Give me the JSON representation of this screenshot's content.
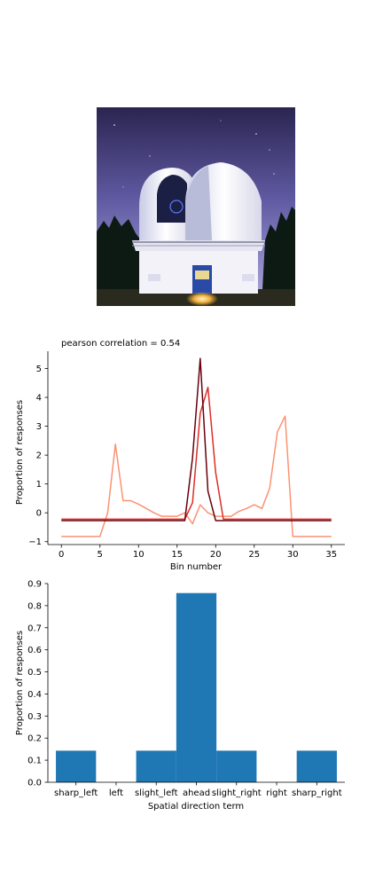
{
  "colors": {
    "bar": "#1f77b4",
    "axis": "#000000"
  },
  "chart_data": [
    {
      "type": "line",
      "title": "pearson correlation = 0.54",
      "xlabel": "Bin number",
      "ylabel": "Proportion of responses",
      "xlim": [
        -1.75,
        36.75
      ],
      "ylim": [
        -1.1,
        5.6
      ],
      "xticks": [
        0,
        5,
        10,
        15,
        20,
        25,
        30,
        35
      ],
      "yticks": [
        -1,
        0,
        1,
        2,
        3,
        4,
        5
      ],
      "grid": false,
      "series": [
        {
          "color": "#fc9272",
          "x": [
            0,
            1,
            2,
            3,
            4,
            5,
            6,
            7,
            8,
            9,
            10,
            11,
            12,
            13,
            14,
            15,
            16,
            17,
            18,
            19,
            20,
            21,
            22,
            23,
            24,
            25,
            26,
            27,
            28,
            29,
            30,
            31,
            32,
            33,
            34,
            35
          ],
          "y": [
            -0.82,
            -0.82,
            -0.82,
            -0.82,
            -0.82,
            -0.82,
            0.0,
            2.38,
            0.42,
            0.42,
            0.3,
            0.15,
            0.0,
            -0.12,
            -0.12,
            -0.12,
            0.0,
            -0.38,
            0.28,
            0.0,
            -0.12,
            -0.12,
            -0.12,
            0.05,
            0.15,
            0.28,
            0.15,
            0.85,
            2.8,
            3.35,
            -0.82,
            -0.82,
            -0.82,
            -0.82,
            -0.82,
            -0.82
          ]
        },
        {
          "color": "#de2d26",
          "x": [
            0,
            1,
            2,
            3,
            4,
            5,
            6,
            7,
            8,
            9,
            10,
            11,
            12,
            13,
            14,
            15,
            16,
            17,
            18,
            19,
            20,
            21,
            22,
            23,
            24,
            25,
            26,
            27,
            28,
            29,
            30,
            31,
            32,
            33,
            34,
            35
          ],
          "y": [
            -0.22,
            -0.22,
            -0.22,
            -0.22,
            -0.22,
            -0.22,
            -0.22,
            -0.22,
            -0.22,
            -0.22,
            -0.22,
            -0.22,
            -0.22,
            -0.22,
            -0.22,
            -0.22,
            -0.22,
            0.35,
            3.45,
            4.35,
            1.4,
            -0.22,
            -0.22,
            -0.22,
            -0.22,
            -0.22,
            -0.22,
            -0.22,
            -0.22,
            -0.22,
            -0.22,
            -0.22,
            -0.22,
            -0.22,
            -0.22,
            -0.22
          ]
        },
        {
          "color": "#67000d",
          "x": [
            0,
            1,
            2,
            3,
            4,
            5,
            6,
            7,
            8,
            9,
            10,
            11,
            12,
            13,
            14,
            15,
            16,
            17,
            18,
            19,
            20,
            21,
            22,
            23,
            24,
            25,
            26,
            27,
            28,
            29,
            30,
            31,
            32,
            33,
            34,
            35
          ],
          "y": [
            -0.27,
            -0.27,
            -0.27,
            -0.27,
            -0.27,
            -0.27,
            -0.27,
            -0.27,
            -0.27,
            -0.27,
            -0.27,
            -0.27,
            -0.27,
            -0.27,
            -0.27,
            -0.27,
            -0.27,
            1.9,
            5.35,
            0.75,
            -0.27,
            -0.27,
            -0.27,
            -0.27,
            -0.27,
            -0.27,
            -0.27,
            -0.27,
            -0.27,
            -0.27,
            -0.27,
            -0.27,
            -0.27,
            -0.27,
            -0.27,
            -0.27
          ]
        }
      ]
    },
    {
      "type": "bar",
      "xlabel": "Spatial direction term",
      "ylabel": "Proportion of responses",
      "ylim": [
        0,
        0.9
      ],
      "yticks": [
        0.0,
        0.1,
        0.2,
        0.3,
        0.4,
        0.5,
        0.6,
        0.7,
        0.8,
        0.9
      ],
      "grid": false,
      "categories": [
        "sharp_left",
        "left",
        "slight_left",
        "ahead",
        "slight_right",
        "right",
        "sharp_right"
      ],
      "values": [
        0.143,
        0.0,
        0.143,
        0.857,
        0.143,
        0.0,
        0.143
      ]
    }
  ]
}
